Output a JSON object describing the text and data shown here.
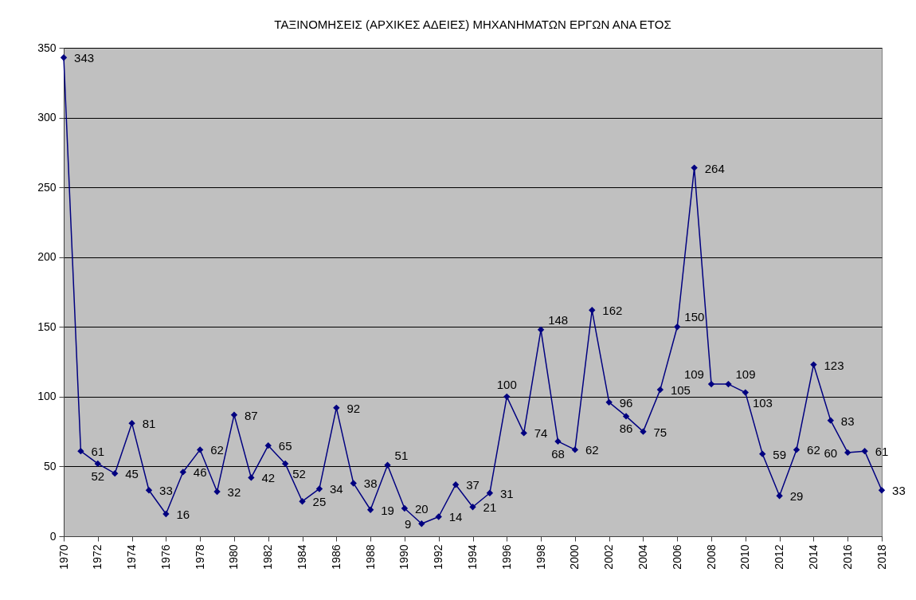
{
  "chart_data": {
    "type": "line",
    "title": "ΤΑΞΙΝΟΜΗΣΕΙΣ (ΑΡΧΙΚΕΣ ΑΔΕΙΕΣ) ΜΗΧΑΝΗΜΑΤΩΝ ΕΡΓΩΝ ΑΝΑ ΕΤΟΣ",
    "x": [
      1970,
      1971,
      1972,
      1973,
      1974,
      1975,
      1976,
      1977,
      1978,
      1979,
      1980,
      1981,
      1982,
      1983,
      1984,
      1985,
      1986,
      1987,
      1988,
      1989,
      1990,
      1991,
      1992,
      1993,
      1994,
      1995,
      1996,
      1997,
      1998,
      1999,
      2000,
      2001,
      2002,
      2003,
      2004,
      2005,
      2006,
      2007,
      2008,
      2009,
      2010,
      2011,
      2012,
      2013,
      2014,
      2015,
      2016,
      2017,
      2018
    ],
    "series": [
      {
        "color": "#000080",
        "values": [
          343,
          61,
          52,
          45,
          81,
          33,
          16,
          46,
          62,
          32,
          87,
          42,
          65,
          52,
          25,
          34,
          92,
          38,
          19,
          51,
          20,
          9,
          14,
          37,
          21,
          31,
          100,
          74,
          148,
          68,
          62,
          162,
          96,
          86,
          75,
          105,
          150,
          264,
          109,
          109,
          103,
          59,
          29,
          62,
          123,
          83,
          60,
          61,
          33
        ]
      }
    ],
    "xlim": [
      1970,
      2018
    ],
    "xticks": [
      1970,
      1972,
      1974,
      1976,
      1978,
      1980,
      1982,
      1984,
      1986,
      1988,
      1990,
      1992,
      1994,
      1996,
      1998,
      2000,
      2002,
      2004,
      2006,
      2008,
      2010,
      2012,
      2014,
      2016,
      2018
    ],
    "ylim": [
      0,
      350
    ],
    "yticks": [
      0,
      50,
      100,
      150,
      200,
      250,
      300,
      350
    ],
    "grid": "y",
    "marker": "diamond",
    "line_style": "solid",
    "data_labels": true
  }
}
